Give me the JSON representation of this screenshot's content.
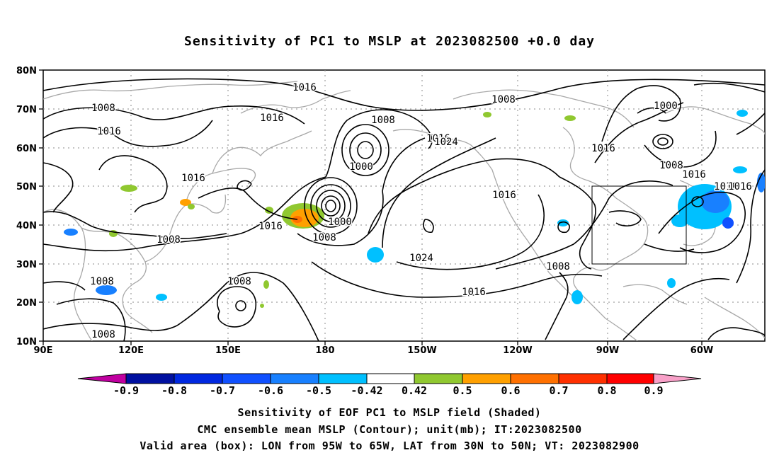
{
  "title": "Sensitivity of PC1 to MSLP at 2023082500 +0.0 day",
  "map": {
    "lat_labels": [
      "80N",
      "70N",
      "60N",
      "50N",
      "40N",
      "30N",
      "20N",
      "10N"
    ],
    "lon_labels": [
      "90E",
      "120E",
      "150E",
      "180",
      "150W",
      "120W",
      "90W",
      "60W"
    ],
    "contour_labels": [
      "1016",
      "1008",
      "1008",
      "1016",
      "1016",
      "1008",
      "1016",
      "1000",
      "1008",
      "1016",
      "1016",
      "1000",
      "1016",
      "1000",
      "1008",
      "1016",
      "1024",
      "1016",
      "1016",
      "1008",
      "1016",
      "1008",
      "1008",
      "1024",
      "1008",
      "1016",
      "1008",
      "1008"
    ],
    "valid_box": {
      "lon_from": "95W",
      "lon_to": "65W",
      "lat_from": "30N",
      "lat_to": "50N"
    },
    "colors": {
      "contour": "#000000",
      "coast": "#a0a0a0",
      "grid": "#888888"
    }
  },
  "colorbar": {
    "labels": [
      "-0.9",
      "-0.8",
      "-0.7",
      "-0.6",
      "-0.5",
      "-0.42",
      "0.42",
      "0.5",
      "0.6",
      "0.7",
      "0.8",
      "0.9"
    ],
    "colors": [
      "#c000a0",
      "#0010a0",
      "#0028e0",
      "#1050ff",
      "#1880ff",
      "#00c0ff",
      "#ffffff",
      "#90c830",
      "#ffa000",
      "#ff7000",
      "#ff3000",
      "#ff0000",
      "#f8a0c8"
    ]
  },
  "captions": {
    "line1": "Sensitivity of EOF PC1 to MSLP field (Shaded)",
    "line2": "CMC ensemble mean MSLP (Contour); unit(mb); IT:2023082500",
    "line3": "Valid area (box): LON from 95W to 65W, LAT from 30N to 50N; VT: 2023082900"
  }
}
